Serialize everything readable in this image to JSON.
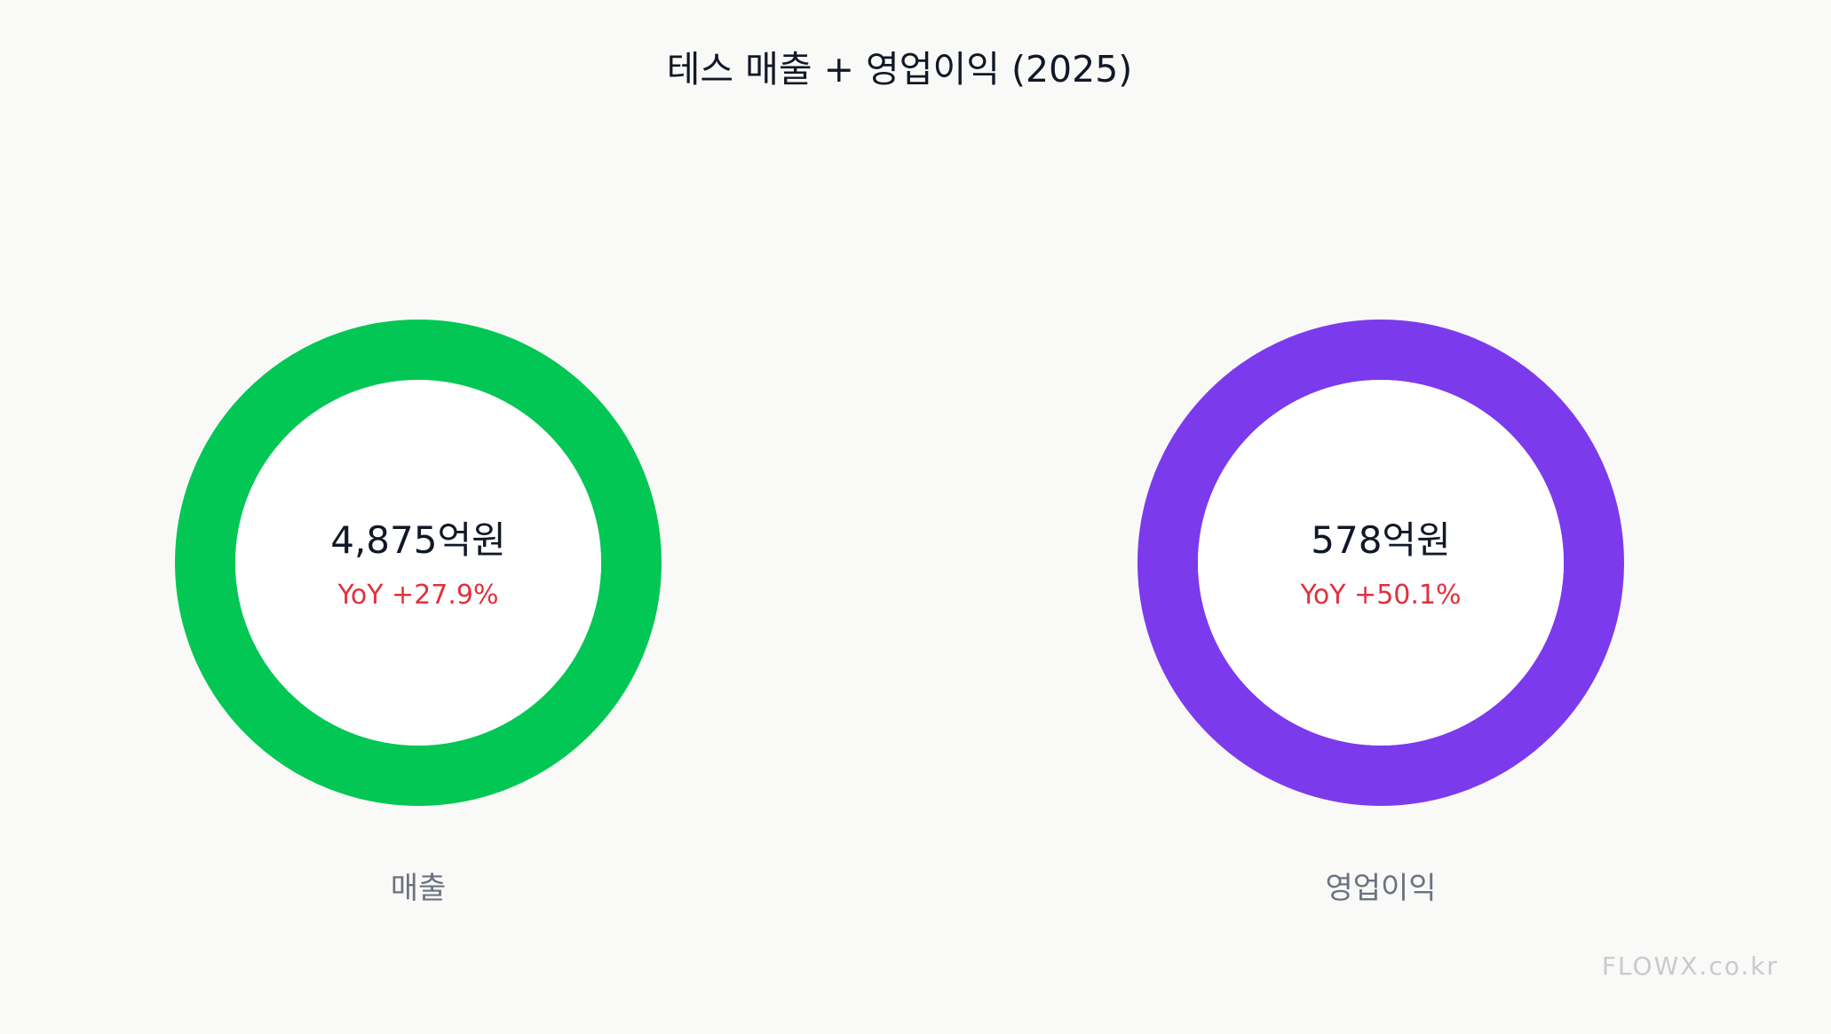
{
  "chart_data": {
    "type": "pie",
    "title": "테스  매출 + 영업이익 (2025)",
    "charts": [
      {
        "name": "매출",
        "value": 4875,
        "value_text": "4,875억원",
        "yoy_text": "YoY +27.9%",
        "color": "#02c754"
      },
      {
        "name": "영업이익",
        "value": 578,
        "value_text": "578억원",
        "yoy_text": "YoY +50.1%",
        "color": "#7c3aed"
      }
    ],
    "yoy_color": "#e0313e"
  },
  "watermark": "FLOWX.co.kr"
}
